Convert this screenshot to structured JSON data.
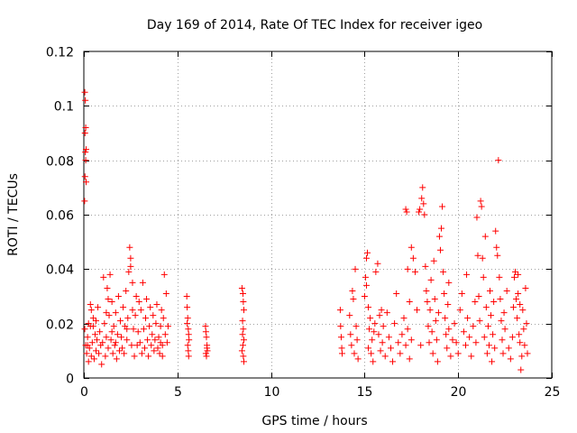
{
  "chart_data": {
    "type": "scatter",
    "title": "Day 169 of 2014, Rate Of TEC Index for receiver igeo",
    "xlabel": "GPS time / hours",
    "ylabel": "ROTI / TECUs",
    "xlim": [
      0,
      25
    ],
    "ylim": [
      0,
      0.12
    ],
    "xticks": [
      0,
      5,
      10,
      15,
      20,
      25
    ],
    "xtick_labels": [
      "0",
      "5",
      "10",
      "15",
      "20",
      "25"
    ],
    "yticks": [
      0,
      0.02,
      0.04,
      0.06,
      0.08,
      0.1,
      0.12
    ],
    "ytick_labels": [
      "0",
      "0.02",
      "0.04",
      "0.06",
      "0.08",
      "0.1",
      "0.12"
    ],
    "grid": true,
    "marker": "+",
    "color": "#ff0000",
    "series": [
      {
        "name": "ROTI",
        "points": [
          [
            0.05,
            0.105
          ],
          [
            0.08,
            0.102
          ],
          [
            0.1,
            0.092
          ],
          [
            0.06,
            0.09
          ],
          [
            0.12,
            0.084
          ],
          [
            0.08,
            0.083
          ],
          [
            0.1,
            0.08
          ],
          [
            0.06,
            0.074
          ],
          [
            0.12,
            0.072
          ],
          [
            0.04,
            0.065
          ],
          [
            0.05,
            0.018
          ],
          [
            0.1,
            0.012
          ],
          [
            0.15,
            0.009
          ],
          [
            0.2,
            0.015
          ],
          [
            0.25,
            0.006
          ],
          [
            0.3,
            0.011
          ],
          [
            0.35,
            0.019
          ],
          [
            0.4,
            0.008
          ],
          [
            0.45,
            0.013
          ],
          [
            0.5,
            0.022
          ],
          [
            0.55,
            0.007
          ],
          [
            0.6,
            0.016
          ],
          [
            0.65,
            0.01
          ],
          [
            0.7,
            0.014
          ],
          [
            0.75,
            0.026
          ],
          [
            0.8,
            0.009
          ],
          [
            0.85,
            0.017
          ],
          [
            0.9,
            0.012
          ],
          [
            0.95,
            0.005
          ],
          [
            0.35,
            0.027
          ],
          [
            0.4,
            0.025
          ],
          [
            0.5,
            0.019
          ],
          [
            0.65,
            0.021
          ],
          [
            0.2,
            0.012
          ],
          [
            0.25,
            0.02
          ],
          [
            1.0,
            0.013
          ],
          [
            1.05,
            0.037
          ],
          [
            1.1,
            0.02
          ],
          [
            1.15,
            0.008
          ],
          [
            1.2,
            0.015
          ],
          [
            1.25,
            0.033
          ],
          [
            1.3,
            0.011
          ],
          [
            1.35,
            0.023
          ],
          [
            1.4,
            0.038
          ],
          [
            1.45,
            0.014
          ],
          [
            1.5,
            0.028
          ],
          [
            1.55,
            0.009
          ],
          [
            1.6,
            0.019
          ],
          [
            1.65,
            0.012
          ],
          [
            1.7,
            0.024
          ],
          [
            1.75,
            0.007
          ],
          [
            1.8,
            0.016
          ],
          [
            1.85,
            0.03
          ],
          [
            1.9,
            0.01
          ],
          [
            1.95,
            0.021
          ],
          [
            1.3,
            0.029
          ],
          [
            1.5,
            0.017
          ],
          [
            1.7,
            0.013
          ],
          [
            1.2,
            0.024
          ],
          [
            2.0,
            0.015
          ],
          [
            2.05,
            0.011
          ],
          [
            2.1,
            0.026
          ],
          [
            2.15,
            0.009
          ],
          [
            2.2,
            0.019
          ],
          [
            2.25,
            0.032
          ],
          [
            2.3,
            0.014
          ],
          [
            2.35,
            0.022
          ],
          [
            2.4,
            0.039
          ],
          [
            2.45,
            0.048
          ],
          [
            2.5,
            0.044
          ],
          [
            2.55,
            0.012
          ],
          [
            2.6,
            0.035
          ],
          [
            2.65,
            0.018
          ],
          [
            2.7,
            0.008
          ],
          [
            2.75,
            0.023
          ],
          [
            2.8,
            0.03
          ],
          [
            2.85,
            0.012
          ],
          [
            2.9,
            0.017
          ],
          [
            2.95,
            0.028
          ],
          [
            2.3,
            0.018
          ],
          [
            2.6,
            0.025
          ],
          [
            2.5,
            0.041
          ],
          [
            3.0,
            0.013
          ],
          [
            3.05,
            0.025
          ],
          [
            3.1,
            0.009
          ],
          [
            3.15,
            0.035
          ],
          [
            3.2,
            0.018
          ],
          [
            3.25,
            0.011
          ],
          [
            3.3,
            0.022
          ],
          [
            3.35,
            0.029
          ],
          [
            3.4,
            0.014
          ],
          [
            3.45,
            0.008
          ],
          [
            3.5,
            0.019
          ],
          [
            3.55,
            0.026
          ],
          [
            3.6,
            0.012
          ],
          [
            3.65,
            0.016
          ],
          [
            3.7,
            0.023
          ],
          [
            3.75,
            0.01
          ],
          [
            3.8,
            0.014
          ],
          [
            3.85,
            0.02
          ],
          [
            3.9,
            0.027
          ],
          [
            3.95,
            0.011
          ],
          [
            4.0,
            0.015
          ],
          [
            4.05,
            0.009
          ],
          [
            4.1,
            0.019
          ],
          [
            4.15,
            0.025
          ],
          [
            4.2,
            0.012
          ],
          [
            4.25,
            0.022
          ],
          [
            4.3,
            0.038
          ],
          [
            4.35,
            0.016
          ],
          [
            4.4,
            0.031
          ],
          [
            4.45,
            0.013
          ],
          [
            4.5,
            0.019
          ],
          [
            4.2,
            0.008
          ],
          [
            4.1,
            0.013
          ],
          [
            5.5,
            0.03
          ],
          [
            5.52,
            0.026
          ],
          [
            5.55,
            0.022
          ],
          [
            5.58,
            0.018
          ],
          [
            5.6,
            0.016
          ],
          [
            5.62,
            0.014
          ],
          [
            5.55,
            0.012
          ],
          [
            5.58,
            0.01
          ],
          [
            5.6,
            0.008
          ],
          [
            5.52,
            0.02
          ],
          [
            6.5,
            0.019
          ],
          [
            6.52,
            0.017
          ],
          [
            6.55,
            0.015
          ],
          [
            6.58,
            0.012
          ],
          [
            6.6,
            0.01
          ],
          [
            6.52,
            0.009
          ],
          [
            6.55,
            0.008
          ],
          [
            6.58,
            0.011
          ],
          [
            8.45,
            0.033
          ],
          [
            8.5,
            0.031
          ],
          [
            8.52,
            0.028
          ],
          [
            8.55,
            0.025
          ],
          [
            8.48,
            0.021
          ],
          [
            8.52,
            0.018
          ],
          [
            8.55,
            0.014
          ],
          [
            8.5,
            0.012
          ],
          [
            8.45,
            0.01
          ],
          [
            8.52,
            0.008
          ],
          [
            8.55,
            0.006
          ],
          [
            8.48,
            0.016
          ],
          [
            13.7,
            0.025
          ],
          [
            13.72,
            0.019
          ],
          [
            13.75,
            0.015
          ],
          [
            13.78,
            0.011
          ],
          [
            13.8,
            0.009
          ],
          [
            14.2,
            0.023
          ],
          [
            14.25,
            0.016
          ],
          [
            14.3,
            0.012
          ],
          [
            14.35,
            0.032
          ],
          [
            14.4,
            0.029
          ],
          [
            14.45,
            0.009
          ],
          [
            14.5,
            0.04
          ],
          [
            14.55,
            0.019
          ],
          [
            14.6,
            0.014
          ],
          [
            14.65,
            0.007
          ],
          [
            15.0,
            0.03
          ],
          [
            15.05,
            0.037
          ],
          [
            15.1,
            0.044
          ],
          [
            15.15,
            0.046
          ],
          [
            15.2,
            0.011
          ],
          [
            15.25,
            0.018
          ],
          [
            15.3,
            0.022
          ],
          [
            15.35,
            0.009
          ],
          [
            15.4,
            0.014
          ],
          [
            15.45,
            0.006
          ],
          [
            15.5,
            0.017
          ],
          [
            15.55,
            0.02
          ],
          [
            15.1,
            0.034
          ],
          [
            15.2,
            0.026
          ],
          [
            15.6,
            0.039
          ],
          [
            15.7,
            0.042
          ],
          [
            15.75,
            0.016
          ],
          [
            15.8,
            0.023
          ],
          [
            15.85,
            0.01
          ],
          [
            15.9,
            0.025
          ],
          [
            15.95,
            0.013
          ],
          [
            16.0,
            0.019
          ],
          [
            16.1,
            0.008
          ],
          [
            16.2,
            0.024
          ],
          [
            16.3,
            0.015
          ],
          [
            16.4,
            0.011
          ],
          [
            16.5,
            0.006
          ],
          [
            16.6,
            0.02
          ],
          [
            16.7,
            0.031
          ],
          [
            16.8,
            0.013
          ],
          [
            16.9,
            0.009
          ],
          [
            17.0,
            0.016
          ],
          [
            17.1,
            0.022
          ],
          [
            17.2,
            0.012
          ],
          [
            17.3,
            0.018
          ],
          [
            17.4,
            0.007
          ],
          [
            17.5,
            0.014
          ],
          [
            17.5,
            0.048
          ],
          [
            17.6,
            0.044
          ],
          [
            17.7,
            0.039
          ],
          [
            17.8,
            0.025
          ],
          [
            17.9,
            0.061
          ],
          [
            17.95,
            0.062
          ],
          [
            17.3,
            0.04
          ],
          [
            17.4,
            0.028
          ],
          [
            17.2,
            0.062
          ],
          [
            17.25,
            0.061
          ],
          [
            18.0,
            0.012
          ],
          [
            18.05,
            0.066
          ],
          [
            18.1,
            0.07
          ],
          [
            18.15,
            0.064
          ],
          [
            18.2,
            0.06
          ],
          [
            18.25,
            0.041
          ],
          [
            18.3,
            0.032
          ],
          [
            18.35,
            0.028
          ],
          [
            18.4,
            0.019
          ],
          [
            18.45,
            0.013
          ],
          [
            18.5,
            0.025
          ],
          [
            18.55,
            0.036
          ],
          [
            18.6,
            0.017
          ],
          [
            18.65,
            0.009
          ],
          [
            18.7,
            0.043
          ],
          [
            18.75,
            0.029
          ],
          [
            18.8,
            0.021
          ],
          [
            18.85,
            0.014
          ],
          [
            18.9,
            0.006
          ],
          [
            18.95,
            0.024
          ],
          [
            19.0,
            0.052
          ],
          [
            19.05,
            0.047
          ],
          [
            19.1,
            0.055
          ],
          [
            19.15,
            0.063
          ],
          [
            19.2,
            0.039
          ],
          [
            19.25,
            0.031
          ],
          [
            19.3,
            0.022
          ],
          [
            19.35,
            0.016
          ],
          [
            19.4,
            0.011
          ],
          [
            19.45,
            0.027
          ],
          [
            19.5,
            0.035
          ],
          [
            19.6,
            0.008
          ],
          [
            19.7,
            0.014
          ],
          [
            19.8,
            0.02
          ],
          [
            19.9,
            0.013
          ],
          [
            19.5,
            0.018
          ],
          [
            20.0,
            0.009
          ],
          [
            20.1,
            0.025
          ],
          [
            20.2,
            0.031
          ],
          [
            20.3,
            0.017
          ],
          [
            20.4,
            0.012
          ],
          [
            20.45,
            0.038
          ],
          [
            20.5,
            0.022
          ],
          [
            20.6,
            0.015
          ],
          [
            20.7,
            0.008
          ],
          [
            20.8,
            0.019
          ],
          [
            20.9,
            0.028
          ],
          [
            20.95,
            0.013
          ],
          [
            21.0,
            0.059
          ],
          [
            21.05,
            0.045
          ],
          [
            21.1,
            0.03
          ],
          [
            21.15,
            0.021
          ],
          [
            21.2,
            0.065
          ],
          [
            21.25,
            0.063
          ],
          [
            21.3,
            0.044
          ],
          [
            21.35,
            0.037
          ],
          [
            21.4,
            0.015
          ],
          [
            21.45,
            0.052
          ],
          [
            21.5,
            0.026
          ],
          [
            21.55,
            0.009
          ],
          [
            21.6,
            0.019
          ],
          [
            21.65,
            0.012
          ],
          [
            21.7,
            0.032
          ],
          [
            21.75,
            0.023
          ],
          [
            21.8,
            0.006
          ],
          [
            21.85,
            0.016
          ],
          [
            21.9,
            0.028
          ],
          [
            21.95,
            0.011
          ],
          [
            22.0,
            0.054
          ],
          [
            22.05,
            0.048
          ],
          [
            22.1,
            0.045
          ],
          [
            22.15,
            0.08
          ],
          [
            22.2,
            0.037
          ],
          [
            22.25,
            0.029
          ],
          [
            22.3,
            0.021
          ],
          [
            22.35,
            0.014
          ],
          [
            22.4,
            0.009
          ],
          [
            22.45,
            0.024
          ],
          [
            22.5,
            0.018
          ],
          [
            22.6,
            0.032
          ],
          [
            22.7,
            0.011
          ],
          [
            22.8,
            0.007
          ],
          [
            22.9,
            0.015
          ],
          [
            22.95,
            0.026
          ],
          [
            23.0,
            0.037
          ],
          [
            23.05,
            0.039
          ],
          [
            23.1,
            0.029
          ],
          [
            23.15,
            0.022
          ],
          [
            23.2,
            0.031
          ],
          [
            23.25,
            0.016
          ],
          [
            23.3,
            0.013
          ],
          [
            23.35,
            0.003
          ],
          [
            23.4,
            0.008
          ],
          [
            23.45,
            0.025
          ],
          [
            23.5,
            0.018
          ],
          [
            23.55,
            0.012
          ],
          [
            23.6,
            0.033
          ],
          [
            23.65,
            0.02
          ],
          [
            23.7,
            0.009
          ],
          [
            23.2,
            0.038
          ],
          [
            23.3,
            0.027
          ]
        ]
      }
    ]
  }
}
